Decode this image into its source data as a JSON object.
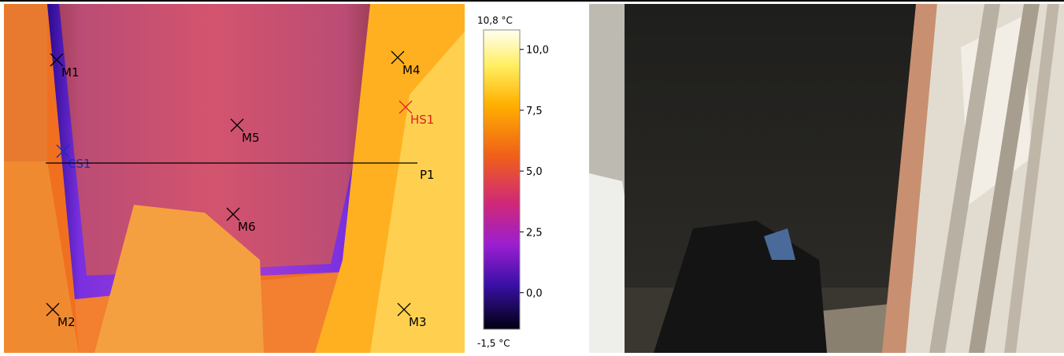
{
  "thermal": {
    "markers": [
      "M1",
      "M4",
      "HS1",
      "M5",
      "CS1",
      "M6",
      "M2",
      "M3"
    ],
    "profile": "P1",
    "scale": {
      "min": -1.5,
      "max": 10.8,
      "min_label": "-1,5 °C",
      "max_label": "10,8 °C",
      "ticks": [
        {
          "value": 10,
          "label": "10,0"
        },
        {
          "value": 7.5,
          "label": "7,5"
        },
        {
          "value": 5,
          "label": "5,0"
        },
        {
          "value": 2.5,
          "label": "2,5"
        },
        {
          "value": 0,
          "label": "0,0"
        }
      ]
    }
  }
}
